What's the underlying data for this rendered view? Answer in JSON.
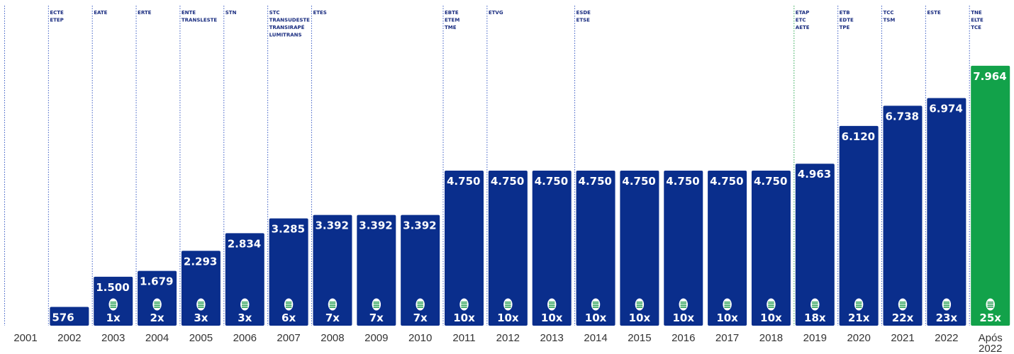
{
  "colors": {
    "bar": "#0a2e8c",
    "bar_highlight": "#12a24a",
    "text_on_bar": "#ffffff",
    "annotation": "#1a2d80",
    "axis_label": "#333333",
    "divider_blue": "#3b5cc4",
    "divider_green": "#2aa84f",
    "icon_fill": "#ffffff",
    "icon_stripe": "#1a9a4a"
  },
  "icons": {
    "multiplier_badge": "stacked-discs-icon"
  },
  "chart_data": {
    "type": "bar",
    "title": "",
    "xlabel": "",
    "ylabel": "",
    "grid": false,
    "legend": "none",
    "ylim": [
      0,
      8500
    ],
    "categories": [
      "2001",
      "2002",
      "2003",
      "2004",
      "2005",
      "2006",
      "2007",
      "2008",
      "2009",
      "2010",
      "2011",
      "2012",
      "2013",
      "2014",
      "2015",
      "2016",
      "2017",
      "2018",
      "2019",
      "2020",
      "2021",
      "2022",
      "Após 2022"
    ],
    "value_labels": [
      "",
      "576",
      "1.500",
      "1.679",
      "2.293",
      "2.834",
      "3.285",
      "3.392",
      "3.392",
      "3.392",
      "4.750",
      "4.750",
      "4.750",
      "4.750",
      "4.750",
      "4.750",
      "4.750",
      "4.750",
      "4.963",
      "6.120",
      "6.738",
      "6.974",
      "7.964"
    ],
    "values": [
      null,
      576,
      1500,
      1679,
      2293,
      2834,
      3285,
      3392,
      3392,
      3392,
      4750,
      4750,
      4750,
      4750,
      4750,
      4750,
      4750,
      4750,
      4963,
      6120,
      6738,
      6974,
      7964
    ],
    "multipliers": [
      "",
      "",
      "1x",
      "2x",
      "3x",
      "3x",
      "6x",
      "7x",
      "7x",
      "7x",
      "10x",
      "10x",
      "10x",
      "10x",
      "10x",
      "10x",
      "10x",
      "10x",
      "18x",
      "21x",
      "22x",
      "23x",
      "25x"
    ],
    "highlight": [
      false,
      false,
      false,
      false,
      false,
      false,
      false,
      false,
      false,
      false,
      false,
      false,
      false,
      false,
      false,
      false,
      false,
      false,
      false,
      false,
      false,
      false,
      true
    ],
    "annotations": [
      {
        "category": "2002",
        "lines": [
          "ECTE",
          "ETEP"
        ]
      },
      {
        "category": "2003",
        "lines": [
          "EATE"
        ]
      },
      {
        "category": "2004",
        "lines": [
          "ERTE"
        ]
      },
      {
        "category": "2005",
        "lines": [
          "ENTE",
          "TRANSLESTE"
        ]
      },
      {
        "category": "2006",
        "lines": [
          "STN"
        ]
      },
      {
        "category": "2007",
        "lines": [
          "STC",
          "TRANSUDESTE",
          "TRANSIRAPÉ",
          "LUMITRANS"
        ]
      },
      {
        "category": "2008",
        "lines": [
          "ETES"
        ]
      },
      {
        "category": "2011",
        "lines": [
          "EBTE",
          "ETEM",
          "TME"
        ]
      },
      {
        "category": "2012",
        "lines": [
          "ETVG"
        ]
      },
      {
        "category": "2014",
        "lines": [
          "ESDE",
          "ETSE"
        ]
      },
      {
        "category": "2019",
        "lines": [
          "ETAP",
          "ETC",
          "AETE"
        ]
      },
      {
        "category": "2020",
        "lines": [
          "ETB",
          "EDTE",
          "TPE"
        ]
      },
      {
        "category": "2021",
        "lines": [
          "TCC",
          "TSM"
        ]
      },
      {
        "category": "2022",
        "lines": [
          "ESTE"
        ]
      },
      {
        "category": "Após 2022",
        "lines": [
          "TNE",
          "ELTE",
          "TCE"
        ]
      }
    ]
  }
}
